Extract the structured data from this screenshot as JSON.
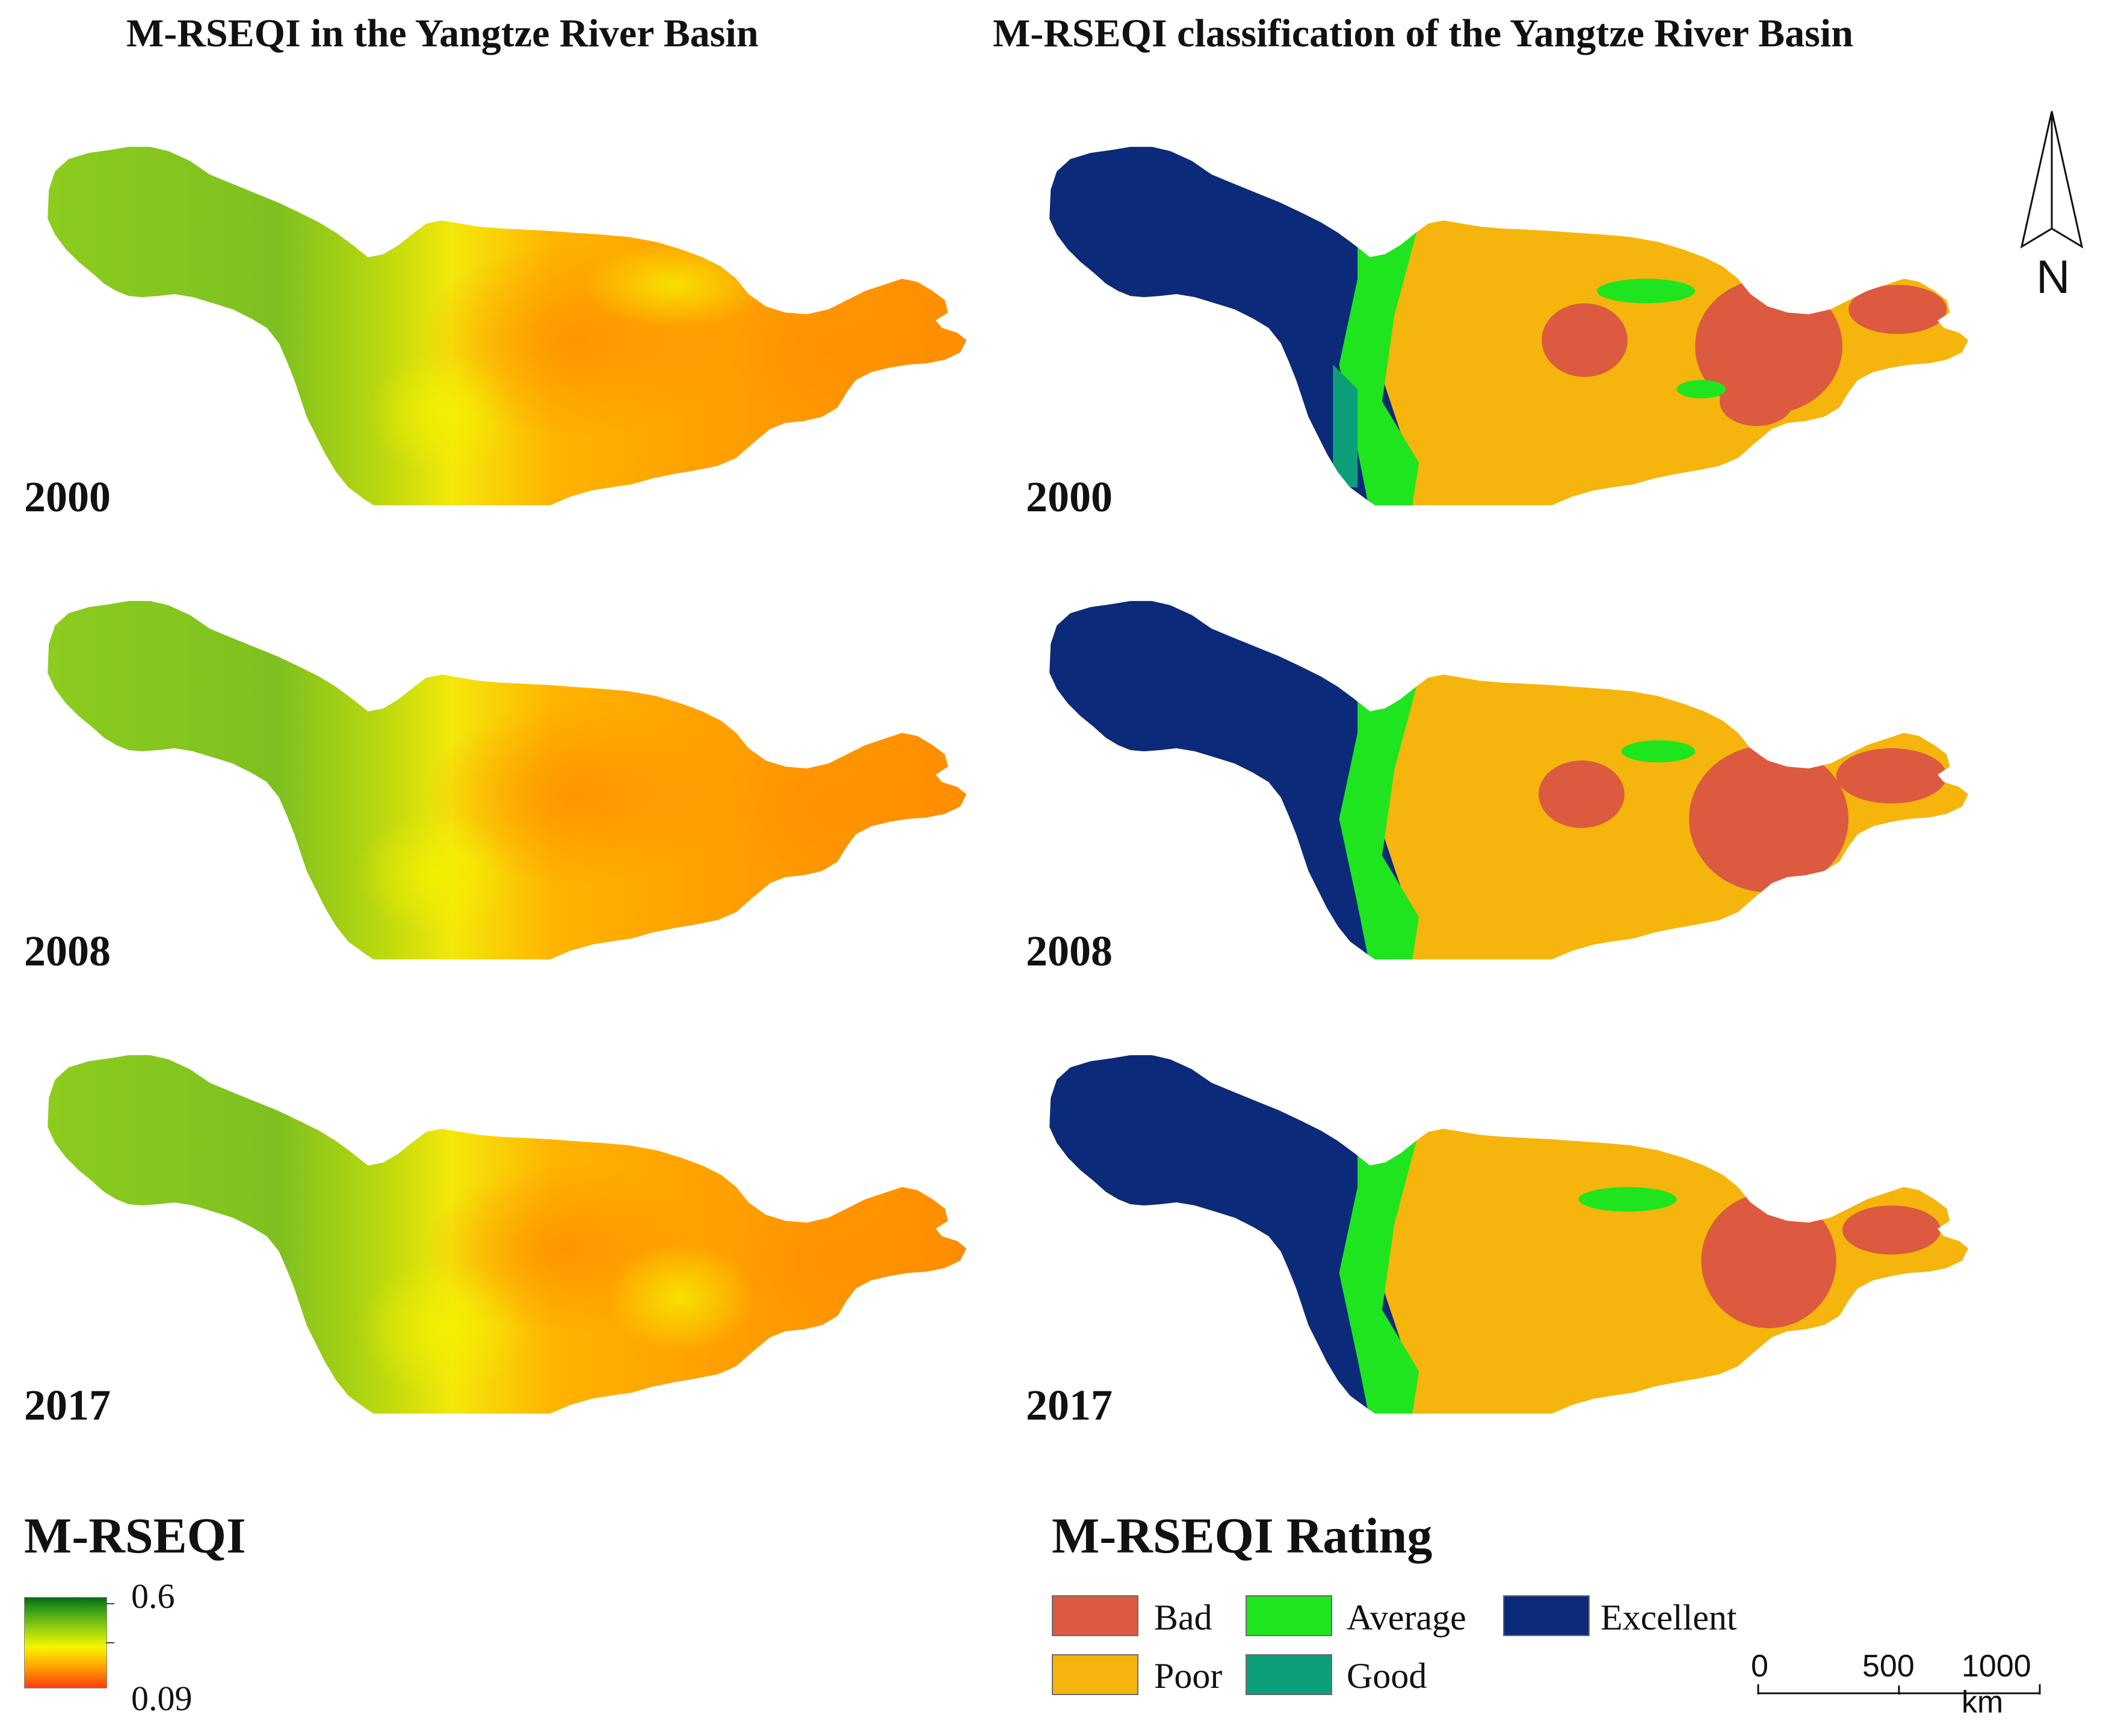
{
  "titles": {
    "left": "M-RSEQI in the Yangtze River Basin",
    "right": "M-RSEQI classification of the Yangtze River Basin"
  },
  "years": [
    "2000",
    "2008",
    "2017"
  ],
  "north_arrow": {
    "label": "N"
  },
  "continuous_legend": {
    "title": "M-RSEQI",
    "max_label": "0.6",
    "min_label": "0.09",
    "gradient_colors": [
      "#0a6a12",
      "#9ad20e",
      "#f7f500",
      "#ff9d00",
      "#ff3d10"
    ]
  },
  "rating_legend": {
    "title": "M-RSEQI Rating",
    "classes": [
      {
        "label": "Bad",
        "color": "#dc5a40"
      },
      {
        "label": "Poor",
        "color": "#f5b50c"
      },
      {
        "label": "Average",
        "color": "#1fe51f"
      },
      {
        "label": "Good",
        "color": "#0d9e7a"
      },
      {
        "label": "Excellent",
        "color": "#0b2a7a"
      }
    ]
  },
  "scale_bar": {
    "labels": [
      "0",
      "500",
      "1000 km"
    ]
  }
}
